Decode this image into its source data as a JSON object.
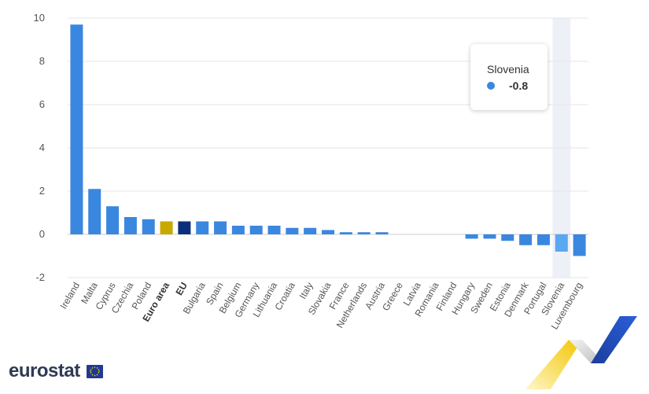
{
  "colors": {
    "bar": "#3a87e0",
    "bar_hover": "#5aa7f2",
    "euro_area": "#c9a800",
    "eu": "#0b2f7a",
    "grid": "#e6e6e6",
    "highlight": "#eef0f8"
  },
  "chart_data": {
    "type": "bar",
    "title": "",
    "xlabel": "",
    "ylabel": "",
    "ylim": [
      -2,
      10
    ],
    "yticks": [
      10,
      8,
      6,
      4,
      2,
      0,
      -2
    ],
    "grid": true,
    "highlighted": "Slovenia",
    "bold_categories": [
      "Euro area",
      "EU"
    ],
    "categories": [
      "Ireland",
      "Malta",
      "Cyprus",
      "Czechia",
      "Poland",
      "Euro area",
      "EU",
      "Bulgaria",
      "Spain",
      "Belgium",
      "Germany",
      "Lithuania",
      "Croatia",
      "Italy",
      "Slovakia",
      "France",
      "Netherlands",
      "Austria",
      "Greece",
      "Latvia",
      "Romania",
      "Finland",
      "Hungary",
      "Sweden",
      "Estonia",
      "Denmark",
      "Portugal",
      "Slovenia",
      "Luxembourg"
    ],
    "values": [
      9.7,
      2.1,
      1.3,
      0.8,
      0.7,
      0.6,
      0.6,
      0.6,
      0.6,
      0.4,
      0.4,
      0.4,
      0.3,
      0.3,
      0.2,
      0.1,
      0.1,
      0.1,
      0.0,
      0.0,
      0.0,
      0.0,
      -0.2,
      -0.2,
      -0.3,
      -0.5,
      -0.5,
      -0.8,
      -1.0
    ]
  },
  "tooltip": {
    "country": "Slovenia",
    "value": "-0.8"
  },
  "branding": {
    "logo_text": "eurostat",
    "flag_icon": "eu-flag-icon",
    "decoration_icon": "eurostat-ribbon-icon"
  }
}
